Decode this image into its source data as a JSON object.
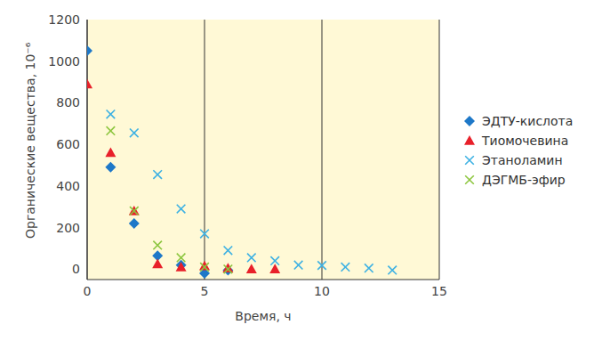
{
  "chart_data": {
    "type": "scatter",
    "x_label": "Время, ч",
    "y_label": "Органические вещества, 10⁻⁶",
    "xlim": [
      0,
      15
    ],
    "xticks": [
      0,
      5,
      10,
      15
    ],
    "ylim": [
      -50,
      1200
    ],
    "yticks": [
      0,
      200,
      400,
      600,
      800,
      1000,
      1200
    ],
    "grid": true,
    "legend": "right",
    "series": [
      {
        "name": "ЭДТУ-кислота",
        "color": "#1e78c8",
        "marker": "diamond",
        "x": [
          0,
          1,
          2,
          3,
          4,
          5,
          6
        ],
        "values": [
          1050,
          490,
          220,
          65,
          20,
          -20,
          -5
        ]
      },
      {
        "name": "Тиомочевина",
        "color": "#e8202a",
        "marker": "triangle",
        "x": [
          0,
          1,
          2,
          3,
          4,
          5,
          6,
          7,
          8
        ],
        "values": [
          890,
          560,
          280,
          25,
          10,
          15,
          5,
          0,
          0
        ]
      },
      {
        "name": "Этаноламин",
        "color": "#3db1e3",
        "marker": "x",
        "x": [
          1,
          2,
          3,
          4,
          5,
          6,
          7,
          8,
          9,
          10,
          11,
          12,
          13
        ],
        "values": [
          745,
          655,
          455,
          290,
          170,
          90,
          55,
          40,
          20,
          18,
          10,
          5,
          -5
        ]
      },
      {
        "name": "ДЭГМБ-эфир",
        "color": "#8dc63f",
        "marker": "x",
        "x": [
          1,
          2,
          3,
          4,
          5,
          6
        ],
        "values": [
          665,
          280,
          115,
          55,
          10,
          0
        ]
      }
    ]
  }
}
